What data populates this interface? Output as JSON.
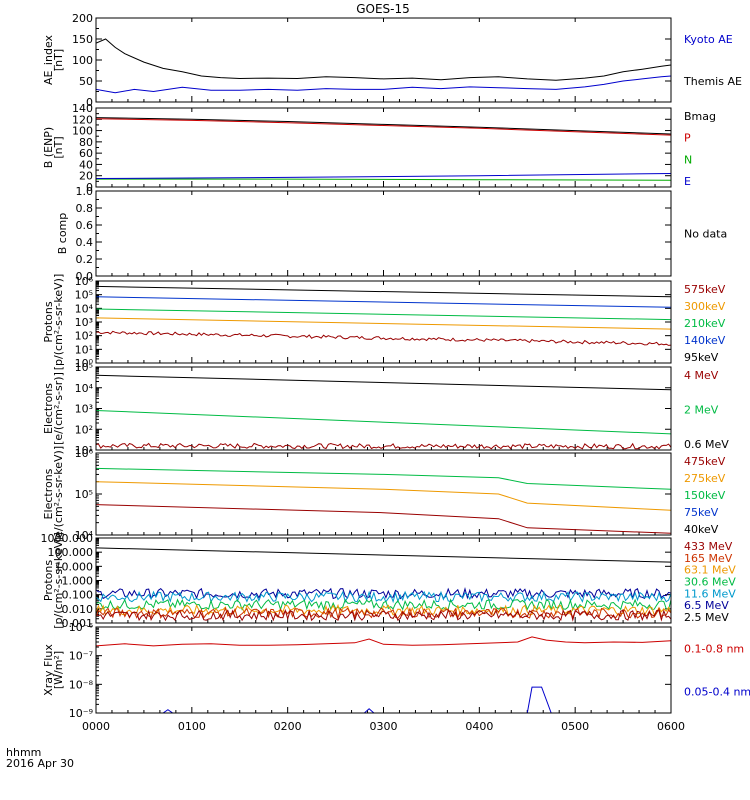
{
  "chart_data": {
    "type": "line",
    "title": "GOES-15",
    "x_ticks": [
      "0000",
      "0100",
      "0200",
      "0300",
      "0400",
      "0500",
      "0600"
    ],
    "x_range": [
      "0000",
      "0600"
    ],
    "x_caption_line1": "hhmm",
    "x_caption_line2": "2016 Apr 30",
    "panels": [
      {
        "id": "ae",
        "ylabel": [
          "AE_index",
          "[nT]"
        ],
        "scale": "linear",
        "ylim": [
          0,
          200
        ],
        "yticks": [
          "0",
          "50",
          "100",
          "150",
          "200"
        ],
        "legend": [
          {
            "text": "Kyoto AE",
            "color": "#0000cc"
          },
          {
            "text": "Themis AE",
            "color": "#000000"
          }
        ],
        "series": [
          {
            "name": "Themis AE",
            "color": "#000000",
            "x": [
              0,
              10,
              20,
              30,
              50,
              70,
              90,
              110,
              130,
              150,
              180,
              210,
              240,
              270,
              300,
              330,
              360,
              390,
              420,
              450,
              480,
              510,
              530,
              550,
              570,
              590,
              600
            ],
            "y": [
              140,
              150,
              130,
              115,
              95,
              80,
              72,
              62,
              58,
              56,
              57,
              56,
              60,
              58,
              55,
              57,
              53,
              58,
              60,
              55,
              52,
              57,
              62,
              72,
              78,
              85,
              88
            ]
          },
          {
            "name": "Kyoto AE",
            "color": "#0000cc",
            "x": [
              0,
              20,
              40,
              60,
              90,
              120,
              150,
              180,
              210,
              240,
              270,
              300,
              330,
              360,
              390,
              420,
              450,
              480,
              510,
              530,
              550,
              570,
              590,
              600
            ],
            "y": [
              30,
              22,
              30,
              25,
              35,
              28,
              28,
              30,
              28,
              32,
              30,
              30,
              35,
              32,
              36,
              34,
              32,
              30,
              36,
              42,
              50,
              55,
              60,
              62
            ]
          }
        ]
      },
      {
        "id": "benp",
        "ylabel": [
          "B (ENP)",
          "[nT]"
        ],
        "scale": "linear",
        "ylim": [
          0,
          140
        ],
        "yticks": [
          "0",
          "20",
          "40",
          "60",
          "80",
          "100",
          "120",
          "140"
        ],
        "legend": [
          {
            "text": "Bmag",
            "color": "#000000"
          },
          {
            "text": "P",
            "color": "#cc0000"
          },
          {
            "text": "N",
            "color": "#00aa00"
          },
          {
            "text": "E",
            "color": "#0000cc"
          }
        ],
        "series": [
          {
            "name": "Bmag",
            "color": "#000000",
            "x": [
              0,
              100,
              200,
              300,
              400,
              500,
              600
            ],
            "y": [
              123,
              120,
              116,
              111,
              106,
              100,
              94
            ]
          },
          {
            "name": "P",
            "color": "#cc0000",
            "x": [
              0,
              100,
              200,
              300,
              400,
              500,
              600
            ],
            "y": [
              121,
              118,
              114,
              109,
              104,
              98,
              92
            ]
          },
          {
            "name": "N",
            "color": "#00aa00",
            "x": [
              0,
              200,
              400,
              600
            ],
            "y": [
              14,
              14,
              13,
              12
            ]
          },
          {
            "name": "E",
            "color": "#0000cc",
            "x": [
              0,
              200,
              400,
              600
            ],
            "y": [
              15,
              17,
              20,
              24
            ]
          }
        ]
      },
      {
        "id": "bcomp",
        "ylabel": [
          "B comp"
        ],
        "scale": "linear",
        "ylim": [
          0,
          1
        ],
        "yticks": [
          "0.0",
          "0.2",
          "0.4",
          "0.6",
          "0.8",
          "1.0"
        ],
        "minor_per_major": 2,
        "legend": [
          {
            "text": "No data",
            "color": "#000000"
          }
        ],
        "series": []
      },
      {
        "id": "protons_low",
        "ylabel": [
          "Protons",
          "[p/(cm²-s-sr-keV)]"
        ],
        "scale": "log",
        "ylim": [
          1,
          1000000
        ],
        "ytick_exps": [
          0,
          1,
          2,
          3,
          4,
          5,
          6
        ],
        "legend": [
          {
            "text": "575keV",
            "color": "#990000"
          },
          {
            "text": "300keV",
            "color": "#ee9900"
          },
          {
            "text": "210keV",
            "color": "#00bb44"
          },
          {
            "text": "140keV",
            "color": "#0033cc"
          },
          {
            "text": "95keV",
            "color": "#000000"
          }
        ],
        "series": [
          {
            "name": "95keV",
            "color": "#000000",
            "x": [
              0,
              600
            ],
            "y": [
              400000,
              70000
            ]
          },
          {
            "name": "140keV",
            "color": "#0033cc",
            "x": [
              0,
              600
            ],
            "y": [
              70000,
              12000
            ]
          },
          {
            "name": "210keV",
            "color": "#00bb44",
            "x": [
              0,
              600
            ],
            "y": [
              9000,
              1500
            ]
          },
          {
            "name": "300keV",
            "color": "#ee9900",
            "x": [
              0,
              600
            ],
            "y": [
              2000,
              300
            ]
          },
          {
            "name": "575keV",
            "color": "#990000",
            "x": [
              0,
              600
            ],
            "y": [
              180,
              25
            ],
            "noise": true
          }
        ]
      },
      {
        "id": "electrons_high",
        "ylabel": [
          "Electrons",
          "[e/(cm²-s-sr)]"
        ],
        "scale": "log",
        "ylim": [
          10,
          100000
        ],
        "ytick_exps": [
          1,
          2,
          3,
          4,
          5
        ],
        "legend": [
          {
            "text": "4 MeV",
            "color": "#990000"
          },
          {
            "text": "2 MeV",
            "color": "#00bb44"
          },
          {
            "text": "0.6 MeV",
            "color": "#000000"
          }
        ],
        "series": [
          {
            "name": "0.6 MeV",
            "color": "#000000",
            "x": [
              0,
              600
            ],
            "y": [
              40000,
              8000
            ]
          },
          {
            "name": "2 MeV",
            "color": "#00bb44",
            "x": [
              0,
              600
            ],
            "y": [
              800,
              60
            ]
          },
          {
            "name": "4 MeV",
            "color": "#990000",
            "x": [
              0,
              600
            ],
            "y": [
              16,
              15
            ],
            "noise": true
          }
        ]
      },
      {
        "id": "electrons_low",
        "ylabel": [
          "Electrons",
          "[e/(cm²-s-sr-keV)]"
        ],
        "scale": "log",
        "ylim": [
          10000,
          1000000
        ],
        "ytick_exps": [
          4,
          5,
          6
        ],
        "legend": [
          {
            "text": "475keV",
            "color": "#990000"
          },
          {
            "text": "275keV",
            "color": "#ee9900"
          },
          {
            "text": "150keV",
            "color": "#00bb44"
          },
          {
            "text": "75keV",
            "color": "#0033cc"
          },
          {
            "text": "40keV",
            "color": "#000000"
          }
        ],
        "series": [
          {
            "name": "475keV",
            "color": "#990000",
            "x": [
              0,
              300,
              420,
              450,
              600
            ],
            "y": [
              55000,
              35000,
              25000,
              15000,
              11000
            ]
          },
          {
            "name": "275keV",
            "color": "#ee9900",
            "x": [
              0,
              300,
              420,
              450,
              600
            ],
            "y": [
              200000,
              130000,
              100000,
              60000,
              40000
            ]
          },
          {
            "name": "150keV",
            "color": "#00bb44",
            "x": [
              0,
              300,
              420,
              450,
              600
            ],
            "y": [
              420000,
              300000,
              250000,
              180000,
              130000
            ]
          }
        ]
      },
      {
        "id": "protons_high",
        "ylabel": [
          "Protons",
          "[p/(cm²-s-sr-keV)]"
        ],
        "scale": "log",
        "ylim": [
          0.001,
          1000
        ],
        "yticks": [
          "0.001",
          "0.010",
          "0.100",
          "1.000",
          "10.000",
          "100.000",
          "1000.000"
        ],
        "legend": [
          {
            "text": "433 MeV",
            "color": "#990000"
          },
          {
            "text": "165 MeV",
            "color": "#cc3300"
          },
          {
            "text": "63.1 MeV",
            "color": "#ee9900"
          },
          {
            "text": "30.6 MeV",
            "color": "#00bb44"
          },
          {
            "text": "11.6 MeV",
            "color": "#0099cc"
          },
          {
            "text": "6.5 MeV",
            "color": "#000099"
          },
          {
            "text": "2.5 MeV",
            "color": "#000000"
          }
        ],
        "series": [
          {
            "name": "2.5 MeV",
            "color": "#000000",
            "x": [
              0,
              600
            ],
            "y": [
              200,
              20
            ]
          },
          {
            "name": "6.5 MeV",
            "color": "#000099",
            "x": [
              0,
              600
            ],
            "y": [
              0.12,
              0.12
            ],
            "noise": true
          },
          {
            "name": "11.6 MeV",
            "color": "#0099cc",
            "x": [
              0,
              600
            ],
            "y": [
              0.07,
              0.07
            ],
            "noise": true
          },
          {
            "name": "30.6 MeV",
            "color": "#00bb44",
            "x": [
              0,
              600
            ],
            "y": [
              0.02,
              0.02
            ],
            "noise": true
          },
          {
            "name": "63.1 MeV",
            "color": "#ee9900",
            "x": [
              0,
              600
            ],
            "y": [
              0.008,
              0.008
            ],
            "noise": true
          },
          {
            "name": "165 MeV",
            "color": "#cc3300",
            "x": [
              0,
              600
            ],
            "y": [
              0.005,
              0.005
            ],
            "noise": true
          },
          {
            "name": "433 MeV",
            "color": "#990000",
            "x": [
              0,
              600
            ],
            "y": [
              0.0035,
              0.0035
            ],
            "noise": true
          }
        ]
      },
      {
        "id": "xray",
        "ylabel": [
          "Xray Flux",
          "[W/m²]"
        ],
        "scale": "log",
        "ylim": [
          1e-09,
          1e-06
        ],
        "ytick_exps": [
          -9,
          -8,
          -7,
          -6
        ],
        "legend": [
          {
            "text": "0.1-0.8 nm",
            "color": "#cc0000"
          },
          {
            "text": "0.05-0.4 nm",
            "color": "#0000cc"
          }
        ],
        "series": [
          {
            "name": "0.1-0.8 nm",
            "color": "#cc0000",
            "x": [
              0,
              30,
              60,
              90,
              120,
              150,
              180,
              210,
              240,
              270,
              285,
              300,
              330,
              360,
              390,
              420,
              440,
              455,
              470,
              490,
              510,
              540,
              570,
              600
            ],
            "y": [
              2.2e-07,
              2.6e-07,
              2.2e-07,
              2.5e-07,
              2.6e-07,
              2.3e-07,
              2.3e-07,
              2.4e-07,
              2.6e-07,
              2.8e-07,
              3.8e-07,
              2.5e-07,
              2.3e-07,
              2.4e-07,
              2.6e-07,
              2.8e-07,
              3e-07,
              4.5e-07,
              3.5e-07,
              3e-07,
              2.8e-07,
              3e-07,
              2.9e-07,
              3.3e-07
            ]
          },
          {
            "name": "0.05-0.4 nm",
            "color": "#0000cc",
            "x": [
              0,
              70,
              75,
              80,
              270,
              280,
              285,
              290,
              440,
              450,
              455,
              460,
              465,
              475,
              600
            ],
            "y": [
              1e-09,
              1e-09,
              1.3e-09,
              1e-09,
              1e-09,
              1e-09,
              1.4e-09,
              1e-09,
              1e-09,
              1e-09,
              8e-09,
              8e-09,
              8e-09,
              1e-09,
              1e-09
            ]
          }
        ]
      }
    ]
  }
}
